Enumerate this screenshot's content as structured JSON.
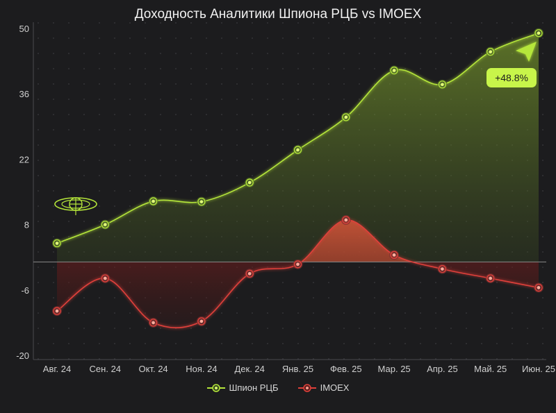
{
  "chart_data": {
    "type": "area",
    "title": "Доходность Аналитики Шпиона РЦБ vs IMOEX",
    "categories": [
      "Авг. 24",
      "Сен. 24",
      "Окт. 24",
      "Ноя. 24",
      "Дек. 24",
      "Янв. 25",
      "Фев. 25",
      "Мар. 25",
      "Апр. 25",
      "Май. 25",
      "Июн. 25"
    ],
    "y_ticks": [
      "50",
      "36",
      "22",
      "8",
      "-6",
      "-20"
    ],
    "ylim": [
      -20,
      50
    ],
    "grid": true,
    "legend_position": "bottom",
    "series": [
      {
        "name": "Шпион РЦБ",
        "color": "#b5e63a",
        "values": [
          4,
          8,
          13,
          12.9,
          17,
          24,
          31,
          41,
          38,
          45,
          49
        ]
      },
      {
        "name": "IMOEX",
        "color": "#e0403a",
        "values": [
          -10.5,
          -3.5,
          -13,
          -12.7,
          -2.5,
          -0.5,
          9,
          1.5,
          -1.5,
          -3.5,
          -5.5
        ]
      }
    ],
    "annotations": [
      {
        "text": "+48.8%",
        "series": "Шпион РЦБ",
        "x": "Июн. 25"
      }
    ]
  },
  "colors": {
    "background": "#1c1c1e",
    "spy": "#b5e63a",
    "imoex": "#e0403a",
    "badge": "#c8f54a"
  },
  "icons": {
    "logo": "target-globe-icon",
    "arrow": "arrow-up-right-icon"
  }
}
